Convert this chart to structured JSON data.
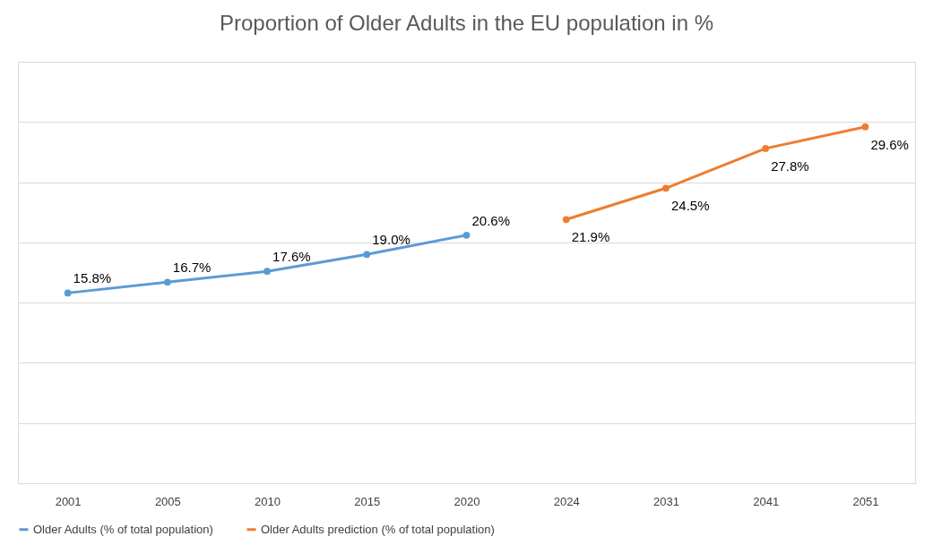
{
  "chart_data": {
    "type": "line",
    "title": "Proportion of Older Adults in the EU population in %",
    "categories": [
      "2001",
      "2005",
      "2010",
      "2015",
      "2020",
      "2024",
      "2031",
      "2041",
      "2051"
    ],
    "series": [
      {
        "name": "Older Adults (% of total population)",
        "color": "#5b9bd5",
        "values": [
          15.8,
          16.7,
          17.6,
          19.0,
          20.6,
          null,
          null,
          null,
          null
        ],
        "value_labels": [
          "15.8%",
          "16.7%",
          "17.6%",
          "19.0%",
          "20.6%",
          null,
          null,
          null,
          null
        ]
      },
      {
        "name": "Older Adults prediction (% of total population)",
        "color": "#ed7d31",
        "values": [
          null,
          null,
          null,
          null,
          null,
          21.9,
          24.5,
          27.8,
          29.6
        ],
        "value_labels": [
          null,
          null,
          null,
          null,
          null,
          "21.9%",
          "24.5%",
          "27.8%",
          "29.6%"
        ]
      }
    ],
    "ylim": [
      0,
      35
    ],
    "yticks": [
      {
        "value": 0,
        "label": null
      },
      {
        "value": 5,
        "label": null
      },
      {
        "value": 10,
        "label": null
      },
      {
        "value": 15,
        "label": null
      },
      {
        "value": 20,
        "label": null
      },
      {
        "value": 25,
        "label": null
      },
      {
        "value": 30,
        "label": null
      },
      {
        "value": 35,
        "label": null
      }
    ],
    "tick_labels": "x",
    "grid": "y",
    "legend": "bottom",
    "marker": "circle",
    "line_style": "solid"
  }
}
